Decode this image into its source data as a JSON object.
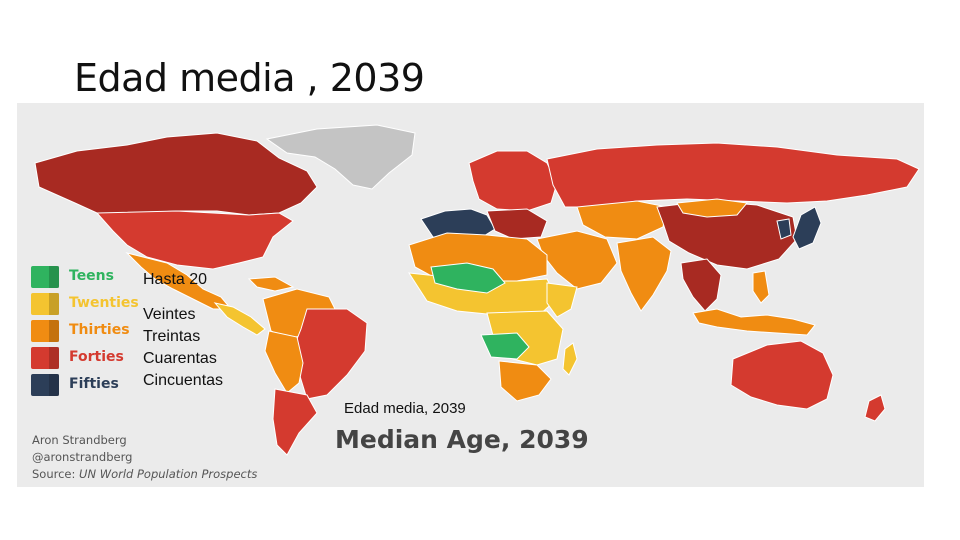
{
  "slide": {
    "title": "Edad media , 2039"
  },
  "map": {
    "title": "Median Age, 2039",
    "caption": "Edad media, 2039",
    "credit_author": "Aron Strandberg",
    "credit_handle": "@aronstrandberg",
    "credit_source_prefix": "Source: ",
    "credit_source": "UN World Population Prospects",
    "colors": {
      "ocean": "#ebebeb",
      "no_data": "#c4c4c4",
      "teens": "#2fb35f",
      "twenties": "#f4c430",
      "thirties": "#f08c12",
      "forties": "#d43a2f",
      "forties_dark": "#a82a22",
      "fifties": "#2c3e58"
    }
  },
  "legend": [
    {
      "label_en": "Teens",
      "label_es": "Hasta 20",
      "color": "#2fb35f"
    },
    {
      "label_en": "Twenties",
      "label_es": "Veintes",
      "color": "#f4c430"
    },
    {
      "label_en": "Thirties",
      "label_es": "Treintas",
      "color": "#f08c12"
    },
    {
      "label_en": "Forties",
      "label_es": "Cuarentas",
      "color": "#d43a2f"
    },
    {
      "label_en": "Fifties",
      "label_es": "Cincuentas",
      "color": "#2c3e58"
    }
  ]
}
